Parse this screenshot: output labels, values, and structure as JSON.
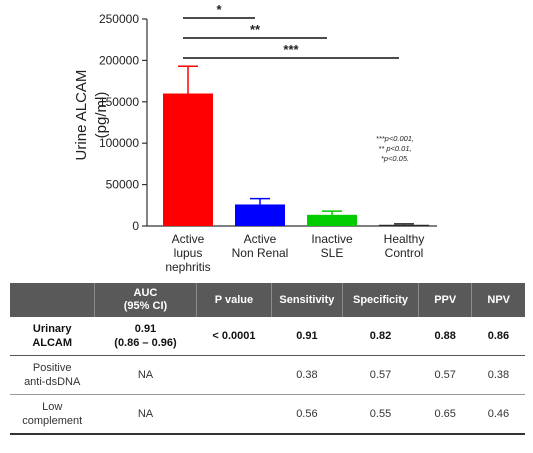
{
  "chart_data": {
    "type": "bar",
    "ylabel_lines": [
      "Urine ALCAM",
      "(pg/ml)"
    ],
    "ylim": [
      0,
      250000
    ],
    "yticks": [
      0,
      50000,
      100000,
      150000,
      200000,
      250000
    ],
    "ytick_labels": [
      "0",
      "50000",
      "100000",
      "150000",
      "200000",
      "250000"
    ],
    "categories": [
      [
        "Active",
        "lupus",
        "nephritis"
      ],
      [
        "Active",
        "Non Renal"
      ],
      [
        "Inactive",
        "SLE"
      ],
      [
        "Healthy",
        "Control"
      ]
    ],
    "values": [
      160000,
      26000,
      13500,
      1500
    ],
    "errors": [
      33000,
      7000,
      4500,
      1000
    ],
    "colors": [
      "#ff0000",
      "#0000ff",
      "#00cc00",
      "#2a2a2a"
    ],
    "significance": [
      {
        "label": "*",
        "from": 0,
        "to": 1
      },
      {
        "label": "**",
        "from": 0,
        "to": 2
      },
      {
        "label": "***",
        "from": 0,
        "to": 3
      }
    ],
    "annotation_lines": [
      "***p<0.001,",
      "** p<0.01,",
      "*p<0.05."
    ]
  },
  "table": {
    "headers": [
      "",
      "AUC\n(95% CI)",
      "P value",
      "Sensitivity",
      "Specificity",
      "PPV",
      "NPV"
    ],
    "rows": [
      {
        "label": "Urinary\nALCAM",
        "cells": [
          "0.91\n(0.86 – 0.96)",
          "< 0.0001",
          "0.91",
          "0.82",
          "0.88",
          "0.86"
        ]
      },
      {
        "label": "Positive\nanti-dsDNA",
        "cells": [
          "NA",
          "",
          "0.38",
          "0.57",
          "0.57",
          "0.38"
        ]
      },
      {
        "label": "Low\ncomplement",
        "cells": [
          "NA",
          "",
          "0.56",
          "0.55",
          "0.65",
          "0.46"
        ]
      }
    ]
  }
}
